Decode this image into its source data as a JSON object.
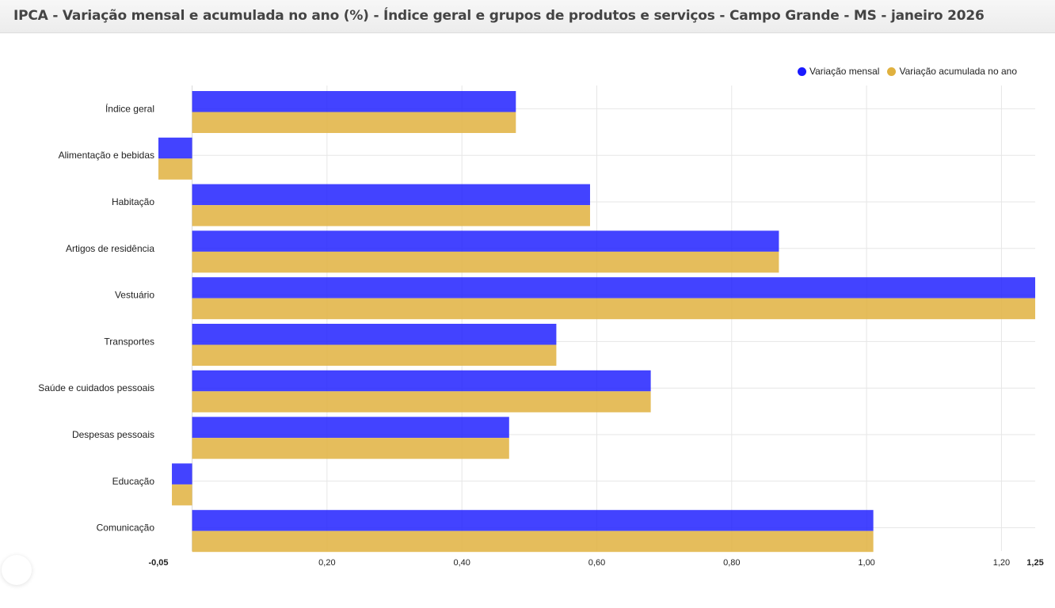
{
  "header": {
    "title": "IPCA - Variação mensal e acumulada no ano (%) - Índice geral e grupos de produtos e serviços - Campo Grande - MS - janeiro 2026"
  },
  "colors": {
    "series_monthly": "#1a1aff",
    "series_accumulated": "#e0b13f",
    "grid": "#e6e6e6"
  },
  "chart_data": {
    "type": "bar",
    "orientation": "horizontal",
    "title": "IPCA - Variação mensal e acumulada no ano (%) - Índice geral e grupos de produtos e serviços - Campo Grande - MS - janeiro 2026",
    "categories": [
      "Índice geral",
      "Alimentação e bebidas",
      "Habitação",
      "Artigos de residência",
      "Vestuário",
      "Transportes",
      "Saúde e cuidados pessoais",
      "Despesas pessoais",
      "Educação",
      "Comunicação"
    ],
    "series": [
      {
        "name": "Variação mensal",
        "values": [
          0.48,
          -0.05,
          0.59,
          0.87,
          1.25,
          0.54,
          0.68,
          0.47,
          -0.03,
          1.01
        ]
      },
      {
        "name": "Variação acumulada no ano",
        "values": [
          0.48,
          -0.05,
          0.59,
          0.87,
          1.25,
          0.54,
          0.68,
          0.47,
          -0.03,
          1.01
        ]
      }
    ],
    "xlim": [
      -0.05,
      1.25
    ],
    "ticks": [
      {
        "value": -0.05,
        "label": "-0,05",
        "bold": true
      },
      {
        "value": 0.2,
        "label": "0,20",
        "bold": false
      },
      {
        "value": 0.4,
        "label": "0,40",
        "bold": false
      },
      {
        "value": 0.6,
        "label": "0,60",
        "bold": false
      },
      {
        "value": 0.8,
        "label": "0,80",
        "bold": false
      },
      {
        "value": 1.0,
        "label": "1,00",
        "bold": false
      },
      {
        "value": 1.2,
        "label": "1,20",
        "bold": false
      },
      {
        "value": 1.25,
        "label": "1,25",
        "bold": true
      }
    ],
    "legend": "top-right",
    "grid": true,
    "xlabel": "",
    "ylabel": ""
  }
}
